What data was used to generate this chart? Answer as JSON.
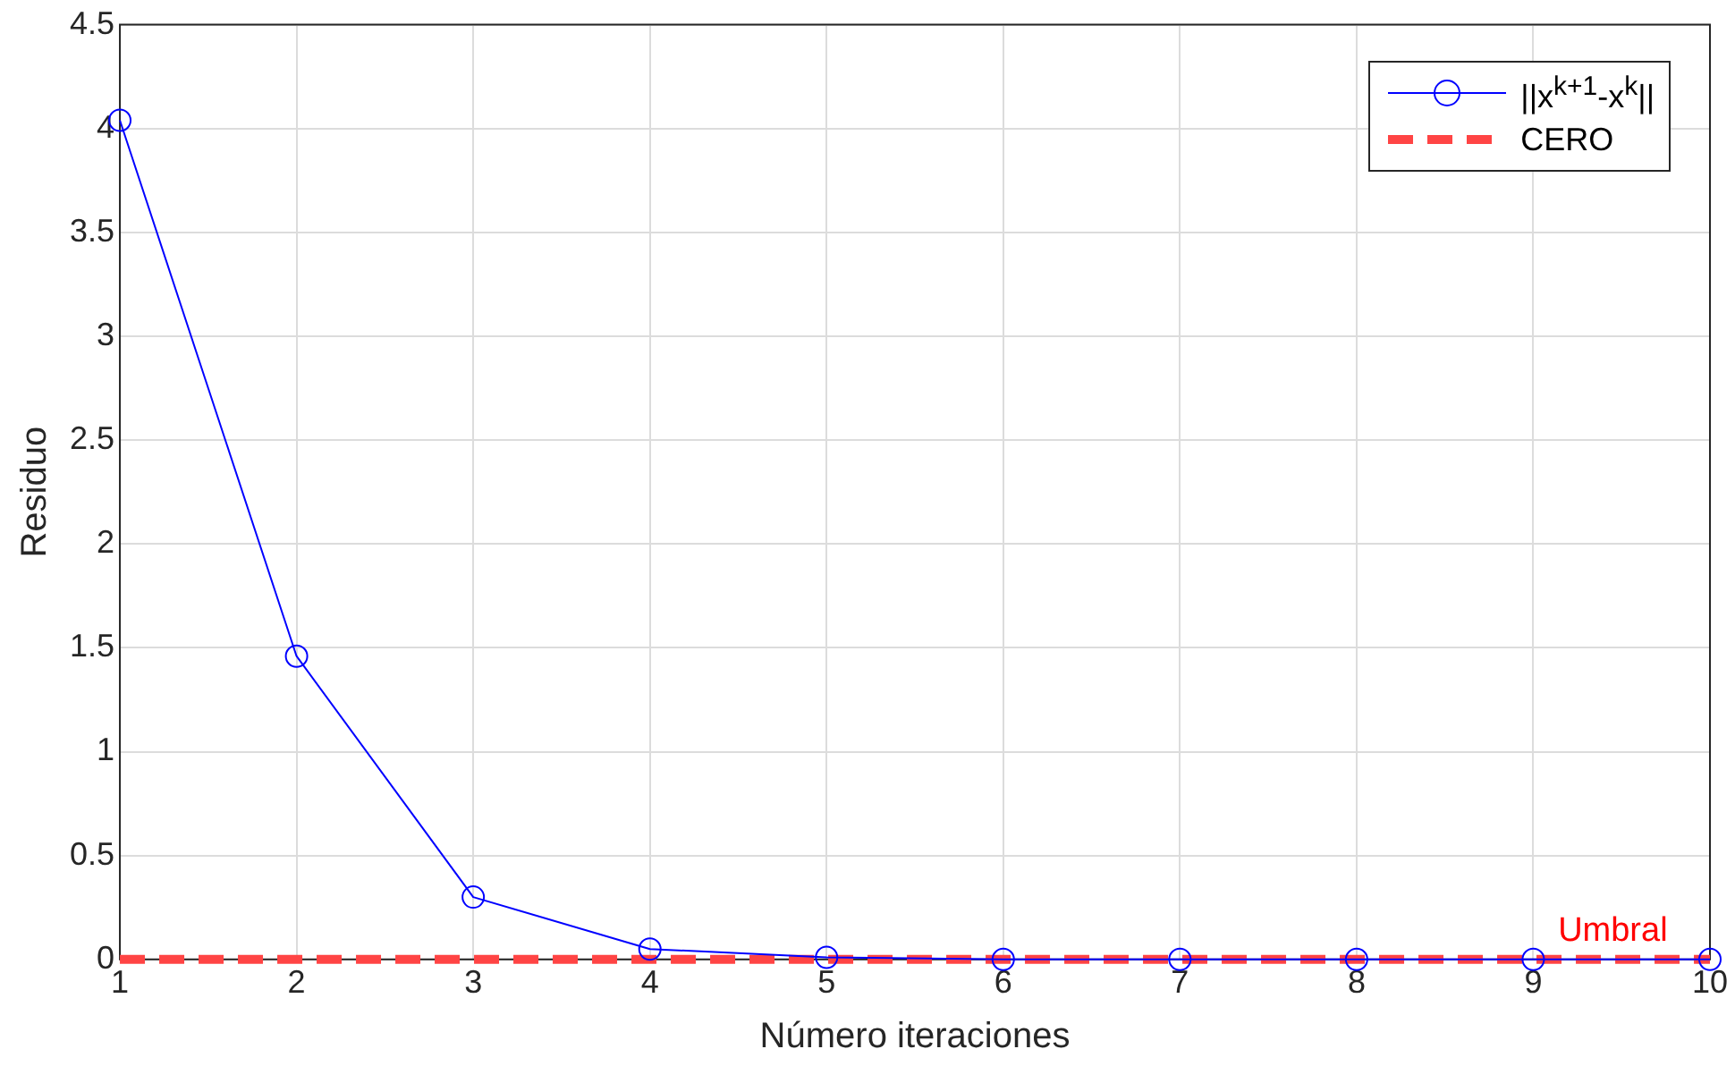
{
  "chart_data": {
    "type": "line",
    "xlabel": "Número iteraciones",
    "ylabel": "Residuo",
    "x": [
      1,
      2,
      3,
      4,
      5,
      6,
      7,
      8,
      9,
      10
    ],
    "series": [
      {
        "name": "||x$^{k+1}$-x$^{k}$||",
        "color": "#0000ff",
        "marker": "circle",
        "line_style": "solid",
        "values": [
          4.04,
          1.46,
          0.3,
          0.05,
          0.01,
          0,
          0,
          0,
          0,
          0
        ]
      },
      {
        "name": "CERO",
        "color": "#ff4444",
        "marker": "none",
        "line_style": "dashed",
        "values": [
          0,
          0,
          0,
          0,
          0,
          0,
          0,
          0,
          0,
          0
        ]
      }
    ],
    "annotations": [
      {
        "text": "Umbral",
        "x": 9.45,
        "y": 0
      }
    ],
    "xlim": [
      1,
      10
    ],
    "xticks": [
      1,
      2,
      3,
      4,
      5,
      6,
      7,
      8,
      9,
      10
    ],
    "ylim": [
      0,
      4.5
    ],
    "yticks": [
      0,
      0.5,
      1,
      1.5,
      2,
      2.5,
      3,
      3.5,
      4,
      4.5
    ],
    "grid": true,
    "legend": "top right"
  }
}
